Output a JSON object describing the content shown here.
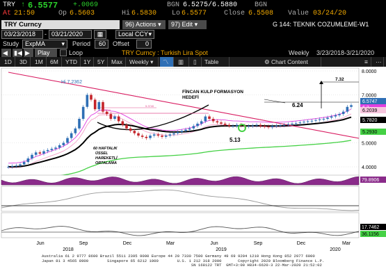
{
  "quote": {
    "ticker": "TRY",
    "last_arrow": "↑",
    "last": "6.5577",
    "change": "+.0069",
    "bid_ask_label": "BGN",
    "bid_ask": "6.5275/6.5880",
    "bid_ask_src": "BGN",
    "at_label": "At",
    "time": "21:50",
    "open_label": "Op",
    "open": "6.5603",
    "high_label": "Hi",
    "high": "6.5830",
    "low_label": "Lo",
    "low": "6.5577",
    "close_label": "Close",
    "close": "6.5508",
    "value_label": "Value",
    "value_date": "03/24/20"
  },
  "toolbar": {
    "title": "TRY Curncy",
    "actions_num": "96)",
    "actions_label": "Actions",
    "edit_num": "97)",
    "edit_label": "Edit",
    "chart_title": "G 144: TEKNIK COZUMLEME-W1",
    "date_from": "03/23/2018",
    "date_to": "03/21/2020",
    "currency": "Local CCY",
    "study_label": "Study",
    "study_value": "ExpMA",
    "period_label": "Period",
    "period_value": "60",
    "offset_label": "Offset",
    "offset_value": "0",
    "play_label": "Play",
    "loop_label": "Loop",
    "security_desc": "TRY Curncy : Turkish Lira Spot",
    "periodicity": "Weekly",
    "range_desc": "3/23/2018-3/21/2020"
  },
  "tabs": [
    "1D",
    "3D",
    "1M",
    "6M",
    "YTD",
    "1Y",
    "5Y",
    "Max",
    "Weekly",
    "Table",
    "Chart Content"
  ],
  "chart": {
    "annotations": {
      "peak": "Hi 7.2362",
      "formation_line1": "FİNCAN KULP FORMASYON",
      "formation_line2": "HEDEFİ",
      "target_624": "6.24",
      "target_732": "7.32",
      "low_513": "5.13",
      "ema_line1": "60 HAFTALIK",
      "ema_line2": "ÜSSEL",
      "ema_line3": "HAREKETLİ",
      "ema_line4": "ORTALAMA",
      "small1": "5.3740",
      "small2": "5.3740"
    },
    "y_ticks": [
      "8.0000",
      "7.0000",
      "6.0000",
      "5.0000",
      "4.0000"
    ],
    "right_labels": {
      "price_last": "6.5747",
      "price_upper": "6.3",
      "price_mid": "6.2039",
      "price_ema": "5.7820",
      "price_low": "5.2930",
      "ind1": "79.8906",
      "ind2": "17.7462",
      "ind3": "36.1156"
    },
    "x_months": [
      "Jun",
      "Sep",
      "Dec",
      "Mar",
      "Jun",
      "Sep",
      "Dec",
      "Mar"
    ],
    "x_years": [
      "2018",
      "2019",
      "2020"
    ],
    "colors": {
      "up": "#2f6fb5",
      "down": "#c4242a",
      "ema": "#000000",
      "ma_green": "#45d145",
      "band": "#e040e0",
      "trend": "#d81b60"
    }
  },
  "footer": {
    "line1": "Australia 61 2 9777 8600 Brazil 5511 2395 9000 Europe 44 20 7330 7500 Germany 49 69 9204 1210 Hong Kong 852 2977 6000",
    "line2": "Japan 81 3 4565 8900        Singapore 65 6212 1000        U.S. 1 212 318 2000       Copyright 2020 Bloomberg Finance L.P.",
    "line3": "                                                                SN 168122 TRT  GMT+3:00 H834-6620-3 22-Mar-2020 21:52:02"
  }
}
